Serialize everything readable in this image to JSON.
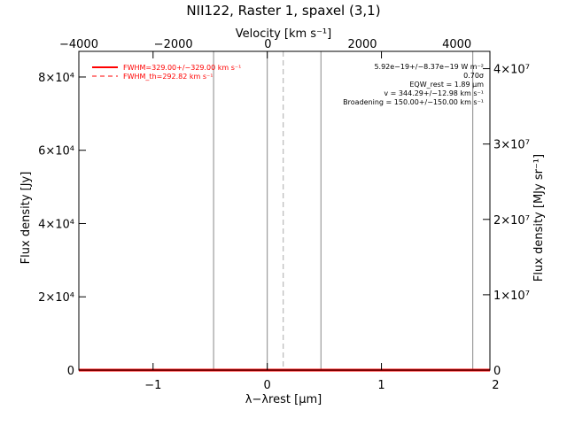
{
  "chart_data": {
    "type": "line",
    "title": "NII122, Raster 1, spaxel (3,1)",
    "xlabel": "λ−λrest [µm]",
    "ylabel_left": "Flux density [Jy]",
    "ylabel_right": "Flux density [MJy sr⁻¹]",
    "xlabel_top": "Velocity [km s⁻¹]",
    "xlim": [
      -1.65,
      1.95
    ],
    "ylim_left": [
      0,
      87000
    ],
    "ylim_right": [
      0,
      42300000
    ],
    "xlim_top": [
      -4000,
      4700
    ],
    "x_ticks": [
      {
        "value": -1,
        "label": "−1"
      },
      {
        "value": 0,
        "label": "0"
      },
      {
        "value": 1,
        "label": "1"
      },
      {
        "value": 2,
        "label": "2"
      }
    ],
    "y_ticks_left": [
      {
        "value": 0,
        "label": "0"
      },
      {
        "value": 20000,
        "label": "2×10⁴"
      },
      {
        "value": 40000,
        "label": "4×10⁴"
      },
      {
        "value": 60000,
        "label": "6×10⁴"
      },
      {
        "value": 80000,
        "label": "8×10⁴"
      }
    ],
    "y_ticks_right": [
      {
        "value": 0,
        "label": "0"
      },
      {
        "value": 10000000,
        "label": "1×10⁷"
      },
      {
        "value": 20000000,
        "label": "2×10⁷"
      },
      {
        "value": 30000000,
        "label": "3×10⁷"
      },
      {
        "value": 40000000,
        "label": "4×10⁷"
      }
    ],
    "x_ticks_top": [
      {
        "value": -4000,
        "label": "−4000"
      },
      {
        "value": -2000,
        "label": "−2000"
      },
      {
        "value": 0,
        "label": "0"
      },
      {
        "value": 2000,
        "label": "2000"
      },
      {
        "value": 4000,
        "label": "4000"
      }
    ],
    "series": [
      {
        "name": "FWHM=329.00+/−329.00 km s⁻¹",
        "color": "#ff0000",
        "style": "solid",
        "points": [
          [
            -1.65,
            0
          ],
          [
            1.95,
            0
          ]
        ]
      },
      {
        "name": "FWHM_th=292.82 km s⁻¹",
        "color": "#ff0000",
        "style": "dashed",
        "points": []
      }
    ],
    "vertical_lines": [
      {
        "x": -0.47,
        "color": "#888888",
        "style": "solid"
      },
      {
        "x": 0.0,
        "color": "#888888",
        "style": "solid"
      },
      {
        "x": 0.14,
        "color": "#aaaaaa",
        "style": "dashed"
      },
      {
        "x": 0.47,
        "color": "#888888",
        "style": "solid"
      },
      {
        "x": 1.8,
        "color": "#888888",
        "style": "solid"
      }
    ],
    "annotations": [
      "5.92e−19+/−8.37e−19 W m⁻²",
      "0.70σ",
      "EQW_rest = 1.89 µm",
      "v = 344.29+/−12.98 km s⁻¹",
      "Broadening = 150.00+/−150.00 km s⁻¹"
    ],
    "grid": false,
    "legend_position": "top-left"
  }
}
